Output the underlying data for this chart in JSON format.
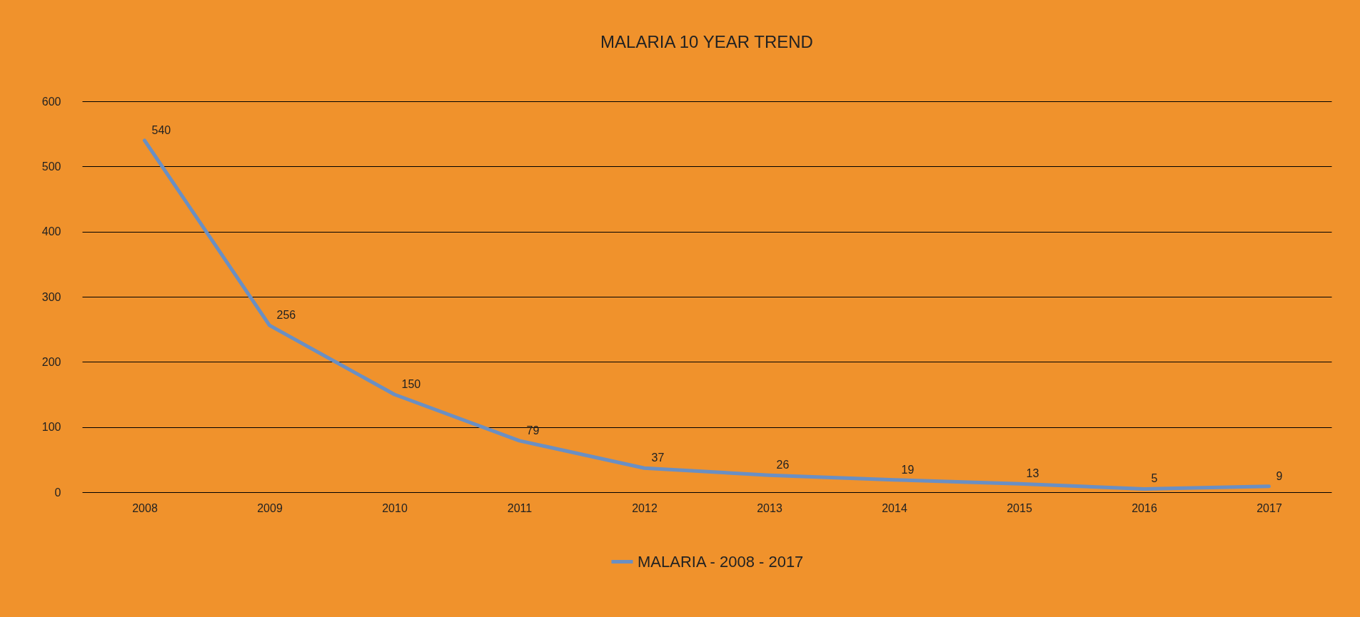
{
  "chart_data": {
    "type": "line",
    "title": "MALARIA 10 YEAR TREND",
    "categories": [
      "2008",
      "2009",
      "2010",
      "2011",
      "2012",
      "2013",
      "2014",
      "2015",
      "2016",
      "2017"
    ],
    "series": [
      {
        "name": "MALARIA - 2008 - 2017",
        "color": "#6a8fc3",
        "values": [
          540,
          256,
          150,
          79,
          37,
          26,
          19,
          13,
          5,
          9
        ]
      }
    ],
    "ylim": [
      0,
      600
    ],
    "yticks": [
      0,
      100,
      200,
      300,
      400,
      500,
      600
    ],
    "grid": "y",
    "legend": "bottom",
    "data_labels": true,
    "marker": "none",
    "line_style": "solid"
  }
}
